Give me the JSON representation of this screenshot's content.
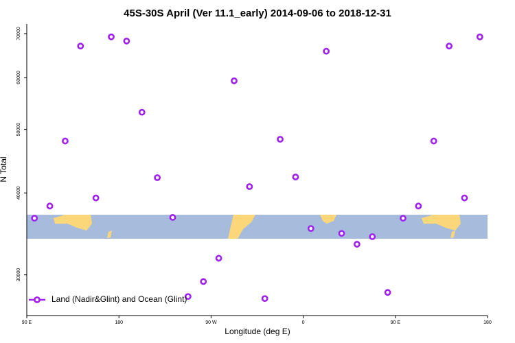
{
  "chart_data": {
    "type": "scatter",
    "title": "45S-30S April (Ver 11.1_early)   2014-09-06 to 2018-12-31",
    "x_label": "Longitude (deg E)",
    "y_label": "N Total",
    "log_y": true,
    "xlim": [
      90,
      540
    ],
    "xticks": [
      {
        "value": 90,
        "label": "90 E"
      },
      {
        "value": 180,
        "label": "180"
      },
      {
        "value": 270,
        "label": "90 W"
      },
      {
        "value": 360,
        "label": "0"
      },
      {
        "value": 450,
        "label": "90 E"
      },
      {
        "value": 540,
        "label": "180"
      }
    ],
    "ylim": [
      26000,
      72400
    ],
    "yticks": [
      30000,
      40000,
      50000,
      60000,
      70000
    ],
    "legend_position": "bottom-left",
    "series": [
      {
        "name": "Land (Nadir&Glint) and Ocean (Glint)",
        "color": "#a020f0",
        "x": [
          97.5,
          112.5,
          127.5,
          142.5,
          157.5,
          172.5,
          187.5,
          202.5,
          217.5,
          232.5,
          247.5,
          262.5,
          277.5,
          292.5,
          307.5,
          322.5,
          337.5,
          352.5,
          367.5,
          382.5,
          397.5,
          412.5,
          427.5,
          442.5,
          457.5,
          472.5,
          487.5,
          502.5,
          517.5,
          532.5
        ],
        "values": [
          36600,
          38200,
          48000,
          67000,
          39300,
          69200,
          68200,
          53100,
          42200,
          36700,
          27800,
          29300,
          31800,
          59300,
          40900,
          27600,
          48300,
          42300,
          35300,
          65800,
          34700,
          33400,
          34300,
          28200,
          36600,
          38200,
          48000,
          67000,
          39300,
          69200
        ]
      }
    ]
  }
}
